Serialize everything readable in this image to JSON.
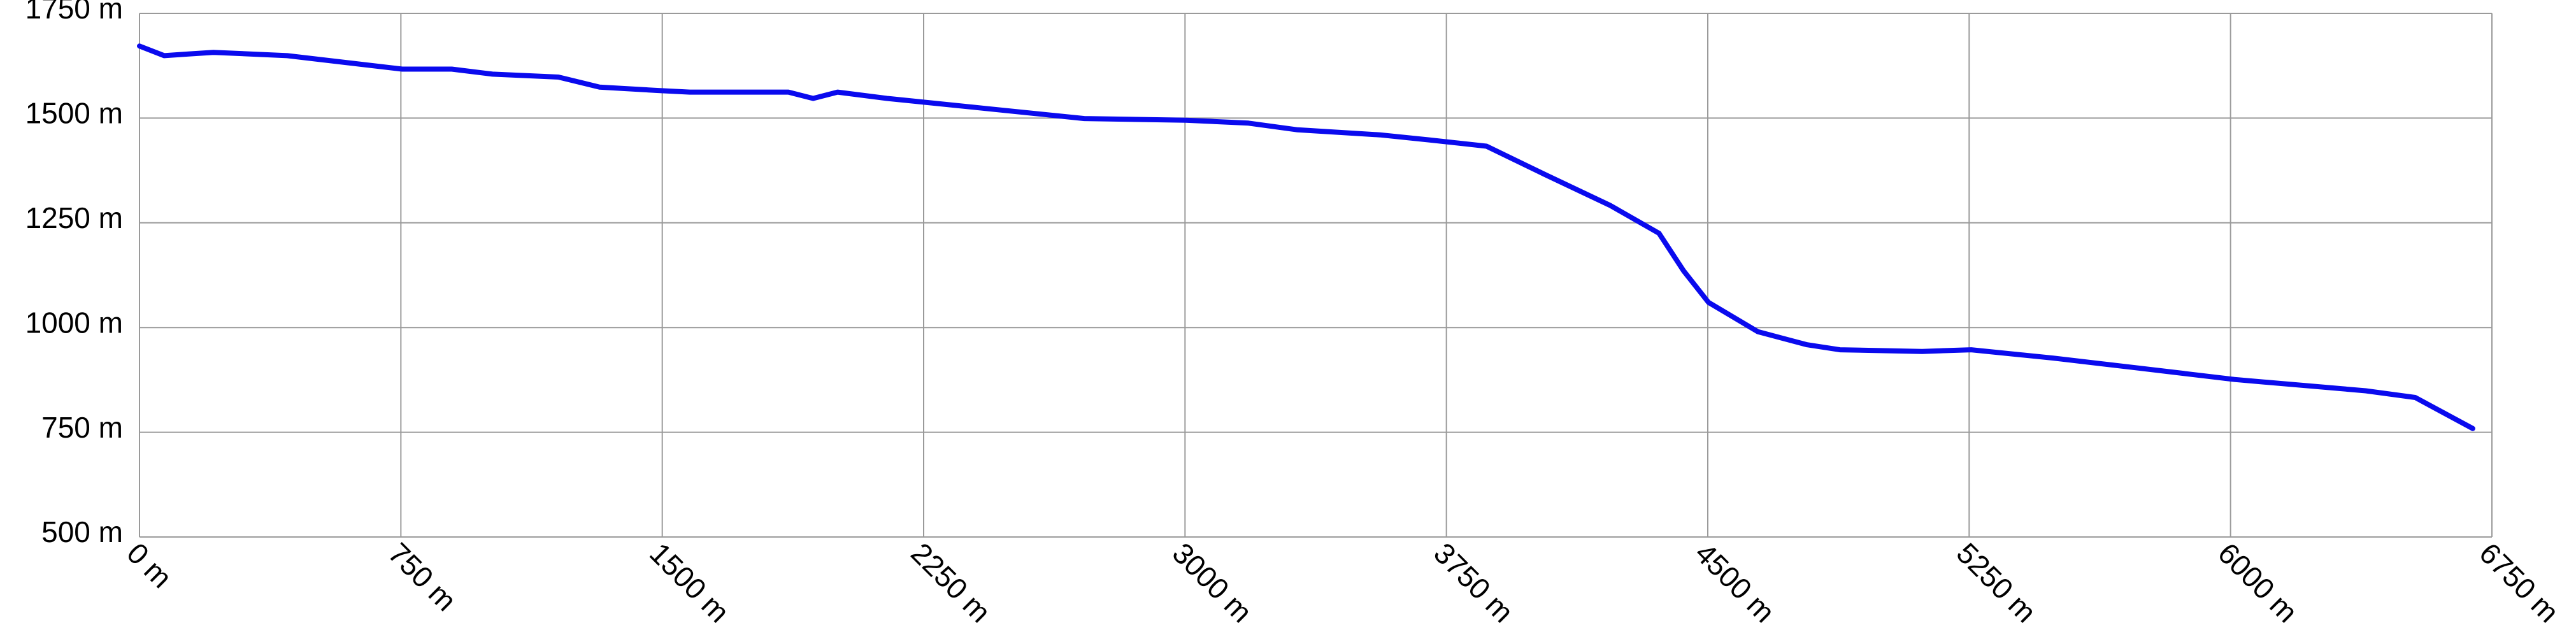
{
  "chart_data": {
    "type": "line",
    "x": [
      0,
      71,
      141,
      212,
      424,
      754,
      896,
      1013,
      1202,
      1320,
      1485,
      1579,
      1862,
      1933,
      2003,
      2145,
      2428,
      2711,
      3003,
      3182,
      3323,
      3559,
      3700,
      3865,
      4031,
      4219,
      4360,
      4431,
      4502,
      4644,
      4785,
      4879,
      5115,
      5256,
      5492,
      5728,
      6011,
      6388,
      6530,
      6695
    ],
    "values": [
      1672,
      1649,
      1653,
      1657,
      1649,
      1617,
      1617,
      1605,
      1598,
      1574,
      1566,
      1562,
      1562,
      1547,
      1562,
      1547,
      1523,
      1499,
      1495,
      1488,
      1472,
      1460,
      1448,
      1433,
      1366,
      1292,
      1225,
      1135,
      1060,
      990,
      959,
      947,
      943,
      947,
      927,
      904,
      876,
      849,
      833,
      759
    ],
    "color": "#0a0aee",
    "xlim": [
      0,
      6750
    ],
    "ylim": [
      500,
      1750
    ],
    "xticks": [
      {
        "value": 0,
        "label": "0 m"
      },
      {
        "value": 750,
        "label": "750 m"
      },
      {
        "value": 1500,
        "label": "1500 m"
      },
      {
        "value": 2250,
        "label": "2250 m"
      },
      {
        "value": 3000,
        "label": "3000 m"
      },
      {
        "value": 3750,
        "label": "3750 m"
      },
      {
        "value": 4500,
        "label": "4500 m"
      },
      {
        "value": 5250,
        "label": "5250 m"
      },
      {
        "value": 6000,
        "label": "6000 m"
      },
      {
        "value": 6750,
        "label": "6750 m"
      }
    ],
    "yticks": [
      {
        "value": 500,
        "label": "500 m"
      },
      {
        "value": 750,
        "label": "750 m"
      },
      {
        "value": 1000,
        "label": "1000 m"
      },
      {
        "value": 1250,
        "label": "1250 m"
      },
      {
        "value": 1500,
        "label": "1500 m"
      },
      {
        "value": 1750,
        "label": "1750 m"
      }
    ],
    "grid": true
  }
}
